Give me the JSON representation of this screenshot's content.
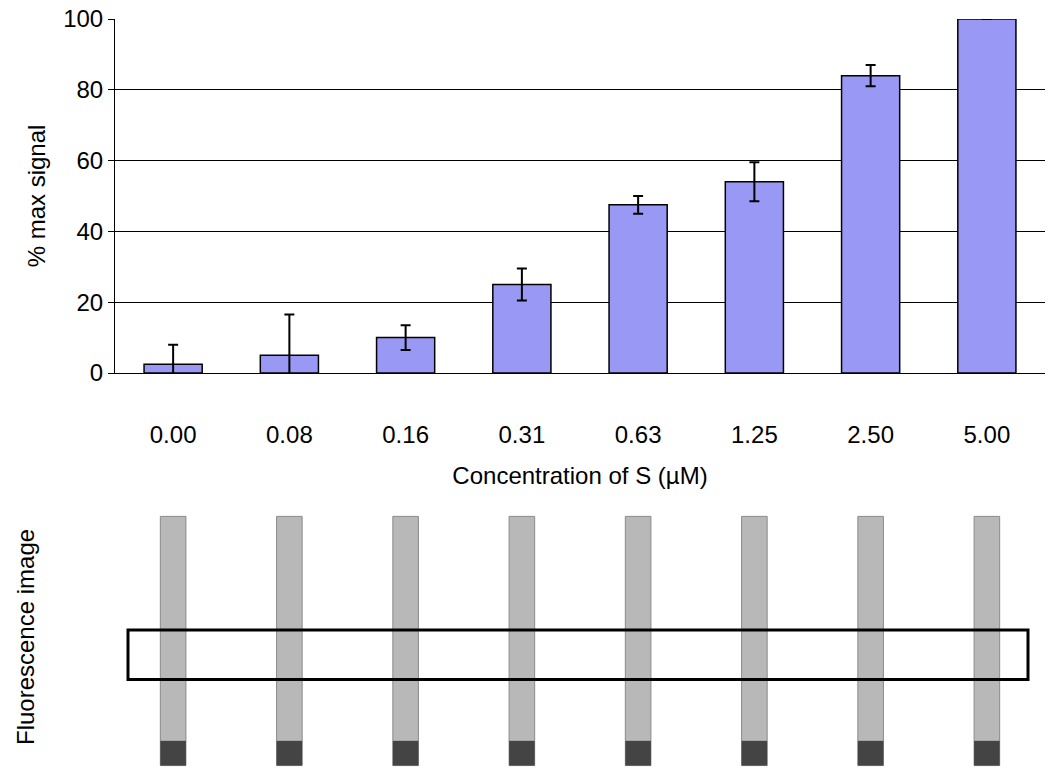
{
  "chart_data": {
    "type": "bar",
    "x_label": "Concentration of S (µM)",
    "y_label": "% max signal",
    "categories": [
      "0.00",
      "0.08",
      "0.16",
      "0.31",
      "0.63",
      "1.25",
      "2.50",
      "5.00"
    ],
    "values": [
      2.5,
      5,
      10,
      25,
      47.5,
      54,
      84,
      100
    ],
    "errors": [
      5.5,
      11.5,
      3.5,
      4.5,
      2.5,
      5.5,
      3,
      0
    ],
    "color": "#9999f5",
    "ylim": [
      0,
      100
    ],
    "yticks": [
      0,
      20,
      40,
      60,
      80,
      100
    ],
    "grid": true,
    "annotations": [
      {
        "text": "Fluorescence image"
      }
    ]
  }
}
